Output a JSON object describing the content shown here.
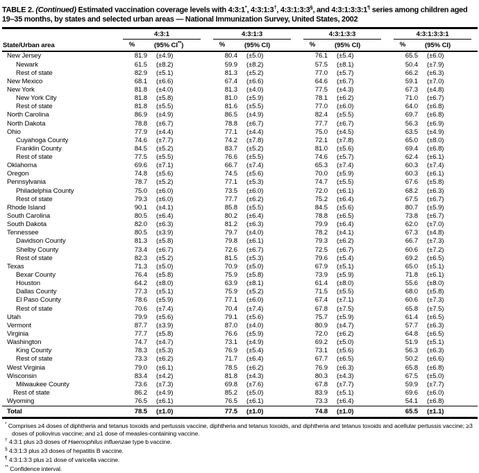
{
  "title": {
    "segments": [
      {
        "t": "TABLE 2. "
      },
      {
        "t": "(Continued)",
        "i": true
      },
      {
        "t": " Estimated vaccination coverage levels with 4:3:1"
      },
      {
        "t": "*",
        "sup": true
      },
      {
        "t": ", 4:3:1:3"
      },
      {
        "t": "†",
        "sup": true
      },
      {
        "t": ", 4:3:1:3:3"
      },
      {
        "t": "§",
        "sup": true
      },
      {
        "t": ", and 4:3:1:3:3:1"
      },
      {
        "t": "¶",
        "sup": true
      },
      {
        "t": " series among children aged 19–35 months, by states and selected urban areas — National Immunization Survey, United States, 2002"
      }
    ]
  },
  "header": {
    "state_col": "State/Urban area",
    "groups": [
      {
        "label": "4:3:1",
        "pct": "%",
        "ci_open": "(95% CI",
        "ci_sup": "**",
        "ci_close": ")"
      },
      {
        "label": "4:3:1:3",
        "pct": "%",
        "ci_open": "(95% CI",
        "ci_sup": "",
        "ci_close": ")"
      },
      {
        "label": "4:3:1:3:3",
        "pct": "%",
        "ci_open": "(95% CI",
        "ci_sup": "",
        "ci_close": ")"
      },
      {
        "label": "4:3:1:3:3:1",
        "pct": "%",
        "ci_open": "(95% CI",
        "ci_sup": "",
        "ci_close": ")"
      }
    ]
  },
  "rows": [
    {
      "area": "New Jersey",
      "indent": 0,
      "cells": [
        "81.9",
        "(±4.9)",
        "80.4",
        "(±5.0)",
        "76.1",
        "(±5.4)",
        "65.5",
        "(±6.0)"
      ]
    },
    {
      "area": "Newark",
      "indent": 1,
      "cells": [
        "61.5",
        "(±8.2)",
        "59.9",
        "(±8.2)",
        "57.5",
        "(±8.1)",
        "50.4",
        "(±7.9)"
      ]
    },
    {
      "area": "Rest of state",
      "indent": 1,
      "cells": [
        "82.9",
        "(±5.1)",
        "81.3",
        "(±5.2)",
        "77.0",
        "(±5.7)",
        "66.2",
        "(±6.3)"
      ]
    },
    {
      "area": "New Mexico",
      "indent": 0,
      "cells": [
        "68.1",
        "(±6.6)",
        "67.4",
        "(±6.6)",
        "64.6",
        "(±6.7)",
        "59.1",
        "(±7.0)"
      ]
    },
    {
      "area": "New York",
      "indent": 0,
      "cells": [
        "81.8",
        "(±4.0)",
        "81.3",
        "(±4.0)",
        "77.5",
        "(±4.3)",
        "67.3",
        "(±4.8)"
      ]
    },
    {
      "area": "New York City",
      "indent": 1,
      "cells": [
        "81.8",
        "(±5.8)",
        "81.0",
        "(±5.9)",
        "78.1",
        "(±6.2)",
        "71.0",
        "(±6.7)"
      ]
    },
    {
      "area": "Rest of state",
      "indent": 1,
      "cells": [
        "81.8",
        "(±5.5)",
        "81.6",
        "(±5.5)",
        "77.0",
        "(±6.0)",
        "64.0",
        "(±6.8)"
      ]
    },
    {
      "area": "North Carolina",
      "indent": 0,
      "cells": [
        "86.9",
        "(±4.9)",
        "86.5",
        "(±4.9)",
        "82.4",
        "(±5.5)",
        "69.7",
        "(±6.8)"
      ]
    },
    {
      "area": "North Dakota",
      "indent": 0,
      "cells": [
        "78.8",
        "(±6.7)",
        "78.8",
        "(±6.7)",
        "77.7",
        "(±6.7)",
        "56.3",
        "(±6.9)"
      ]
    },
    {
      "area": "Ohio",
      "indent": 0,
      "cells": [
        "77.9",
        "(±4.4)",
        "77.1",
        "(±4.4)",
        "75.0",
        "(±4.5)",
        "63.5",
        "(±4.9)"
      ]
    },
    {
      "area": "Cuyahoga County",
      "indent": 1,
      "cells": [
        "74.6",
        "(±7.7)",
        "74.2",
        "(±7.8)",
        "72.1",
        "(±7.8)",
        "65.0",
        "(±8.0)"
      ]
    },
    {
      "area": "Franklin County",
      "indent": 1,
      "cells": [
        "84.5",
        "(±5.2)",
        "83.7",
        "(±5.2)",
        "81.0",
        "(±5.6)",
        "69.4",
        "(±6.8)"
      ]
    },
    {
      "area": "Rest of state",
      "indent": 1,
      "cells": [
        "77.5",
        "(±5.5)",
        "76.6",
        "(±5.5)",
        "74.6",
        "(±5.7)",
        "62.4",
        "(±6.1)"
      ]
    },
    {
      "area": "Oklahoma",
      "indent": 0,
      "cells": [
        "69.6",
        "(±7.1)",
        "66.7",
        "(±7.4)",
        "65.3",
        "(±7.4)",
        "60.3",
        "(±7.4)"
      ]
    },
    {
      "area": "Oregon",
      "indent": 0,
      "cells": [
        "74.8",
        "(±5.6)",
        "74.5",
        "(±5.6)",
        "70.0",
        "(±5.9)",
        "60.3",
        "(±6.1)"
      ]
    },
    {
      "area": "Pennsylvania",
      "indent": 0,
      "cells": [
        "78.7",
        "(±5.2)",
        "77.1",
        "(±5.3)",
        "74.7",
        "(±5.5)",
        "67.6",
        "(±5.8)"
      ]
    },
    {
      "area": "Philadelphia County",
      "indent": 1,
      "cells": [
        "75.0",
        "(±6.0)",
        "73.5",
        "(±6.0)",
        "72.0",
        "(±6.1)",
        "68.2",
        "(±6.3)"
      ]
    },
    {
      "area": "Rest of state",
      "indent": 1,
      "cells": [
        "79.3",
        "(±6.0)",
        "77.7",
        "(±6.2)",
        "75.2",
        "(±6.4)",
        "67.5",
        "(±6.7)"
      ]
    },
    {
      "area": "Rhode Island",
      "indent": 0,
      "cells": [
        "90.1",
        "(±4.1)",
        "85.8",
        "(±5.5)",
        "84.5",
        "(±5.6)",
        "80.7",
        "(±5.9)"
      ]
    },
    {
      "area": "South Carolina",
      "indent": 0,
      "cells": [
        "80.5",
        "(±6.4)",
        "80.2",
        "(±6.4)",
        "78.8",
        "(±6.5)",
        "73.8",
        "(±6.7)"
      ]
    },
    {
      "area": "South Dakota",
      "indent": 0,
      "cells": [
        "82.0",
        "(±6.3)",
        "81.2",
        "(±6.3)",
        "79.9",
        "(±6.4)",
        "62.0",
        "(±7.0)"
      ]
    },
    {
      "area": "Tennessee",
      "indent": 0,
      "cells": [
        "80.5",
        "(±3.9)",
        "79.7",
        "(±4.0)",
        "78.2",
        "(±4.1)",
        "67.3",
        "(±4.8)"
      ]
    },
    {
      "area": "Davidson County",
      "indent": 1,
      "cells": [
        "81.3",
        "(±5.8)",
        "79.8",
        "(±6.1)",
        "79.3",
        "(±6.2)",
        "66.7",
        "(±7.3)"
      ]
    },
    {
      "area": "Shelby County",
      "indent": 1,
      "cells": [
        "73.4",
        "(±6.7)",
        "72.6",
        "(±6.7)",
        "72.5",
        "(±6.7)",
        "60.6",
        "(±7.2)"
      ]
    },
    {
      "area": "Rest of state",
      "indent": 1,
      "cells": [
        "82.3",
        "(±5.2)",
        "81.5",
        "(±5.3)",
        "79.6",
        "(±5.4)",
        "69.2",
        "(±6.5)"
      ]
    },
    {
      "area": "Texas",
      "indent": 0,
      "cells": [
        "71.3",
        "(±5.0)",
        "70.9",
        "(±5.0)",
        "67.9",
        "(±5.1)",
        "65.0",
        "(±5.1)"
      ]
    },
    {
      "area": "Bexar County",
      "indent": 1,
      "cells": [
        "76.4",
        "(±5.8)",
        "75.9",
        "(±5.8)",
        "73.9",
        "(±5.9)",
        "71.8",
        "(±6.1)"
      ]
    },
    {
      "area": "Houston",
      "indent": 1,
      "cells": [
        "64.2",
        "(±8.0)",
        "63.9",
        "(±8.1)",
        "61.4",
        "(±8.0)",
        "55.6",
        "(±8.0)"
      ]
    },
    {
      "area": "Dallas County",
      "indent": 1,
      "cells": [
        "77.3",
        "(±5.1)",
        "75.9",
        "(±5.2)",
        "71.5",
        "(±5.5)",
        "68.0",
        "(±5.8)"
      ]
    },
    {
      "area": "El Paso County",
      "indent": 1,
      "cells": [
        "78.6",
        "(±5.9)",
        "77.1",
        "(±6.0)",
        "67.4",
        "(±7.1)",
        "60.6",
        "(±7.3)"
      ]
    },
    {
      "area": "Rest of state",
      "indent": 1,
      "cells": [
        "70.6",
        "(±7.4)",
        "70.4",
        "(±7.4)",
        "67.8",
        "(±7.5)",
        "65.8",
        "(±7.5)"
      ]
    },
    {
      "area": "Utah",
      "indent": 0,
      "cells": [
        "79.9",
        "(±5.6)",
        "79.1",
        "(±5.6)",
        "75.7",
        "(±5.9)",
        "61.4",
        "(±6.5)"
      ]
    },
    {
      "area": "Vermont",
      "indent": 0,
      "cells": [
        "87.7",
        "(±3.9)",
        "87.0",
        "(±4.0)",
        "80.9",
        "(±4.7)",
        "57.7",
        "(±6.3)"
      ]
    },
    {
      "area": "Virginia",
      "indent": 0,
      "cells": [
        "77.7",
        "(±5.8)",
        "76.6",
        "(±5.9)",
        "72.0",
        "(±6.2)",
        "64.8",
        "(±6.5)"
      ]
    },
    {
      "area": "Washington",
      "indent": 0,
      "cells": [
        "74.7",
        "(±4.7)",
        "73.1",
        "(±4.9)",
        "69.2",
        "(±5.0)",
        "51.9",
        "(±5.1)"
      ]
    },
    {
      "area": "King County",
      "indent": 1,
      "cells": [
        "78.3",
        "(±5.3)",
        "76.9",
        "(±5.4)",
        "73.1",
        "(±5.6)",
        "56.3",
        "(±6.3)"
      ]
    },
    {
      "area": "Rest of state",
      "indent": 1,
      "cells": [
        "73.3",
        "(±6.2)",
        "71.7",
        "(±6.4)",
        "67.7",
        "(±6.5)",
        "50.2",
        "(±6.6)"
      ]
    },
    {
      "area": "West Virginia",
      "indent": 0,
      "cells": [
        "79.0",
        "(±6.1)",
        "78.5",
        "(±6.2)",
        "76.9",
        "(±6.3)",
        "65.8",
        "(±6.8)"
      ]
    },
    {
      "area": "Wisconsin",
      "indent": 0,
      "cells": [
        "83.4",
        "(±4.2)",
        "81.8",
        "(±4.3)",
        "80.3",
        "(±4.3)",
        "67.5",
        "(±5.0)"
      ]
    },
    {
      "area": "Milwaukee County",
      "indent": 1,
      "cells": [
        "73.6",
        "(±7.3)",
        "69.8",
        "(±7.6)",
        "67.8",
        "(±7.7)",
        "59.9",
        "(±7.7)"
      ]
    },
    {
      "area": "Rest of state",
      "indent": 0.7,
      "cells": [
        "86.2",
        "(±4.9)",
        "85.2",
        "(±5.0)",
        "83.9",
        "(±5.1)",
        "69.6",
        "(±6.0)"
      ]
    },
    {
      "area": "Wyoming",
      "indent": 0,
      "cells": [
        "76.5",
        "(±6.1)",
        "76.5",
        "(±6.1)",
        "73.3",
        "(±6.4)",
        "54.1",
        "(±6.8)"
      ]
    }
  ],
  "total": {
    "area": "Total",
    "cells": [
      "78.5",
      "(±1.0)",
      "77.5",
      "(±1.0)",
      "74.8",
      "(±1.0)",
      "65.5",
      "(±1.1)"
    ]
  },
  "footnotes": [
    {
      "marker": "*",
      "segments": [
        {
          "t": "Comprises ≥4 doses of diphtheria and tetanus toxoids and pertussis vaccine, diphtheria and tetanus toxoids, and diphtheria and tetanus toxoids and acellular pertussis vaccine; ≥3 doses of poliovirus vaccine; and ≥1 dose of measles-containing vaccine."
        }
      ]
    },
    {
      "marker": "†",
      "segments": [
        {
          "t": "4:3:1 plus ≥3 doses of "
        },
        {
          "t": "Haemophilus influenzae",
          "i": true
        },
        {
          "t": " type b vaccine."
        }
      ]
    },
    {
      "marker": "§",
      "segments": [
        {
          "t": "4:3:1:3 plus ≥3 doses of hepatitis B vaccine."
        }
      ]
    },
    {
      "marker": "¶",
      "segments": [
        {
          "t": "4:3:1:3:3 plus ≥1 dose of varicella vaccine."
        }
      ]
    },
    {
      "marker": "**",
      "segments": [
        {
          "t": "Confidence interval."
        }
      ]
    }
  ]
}
